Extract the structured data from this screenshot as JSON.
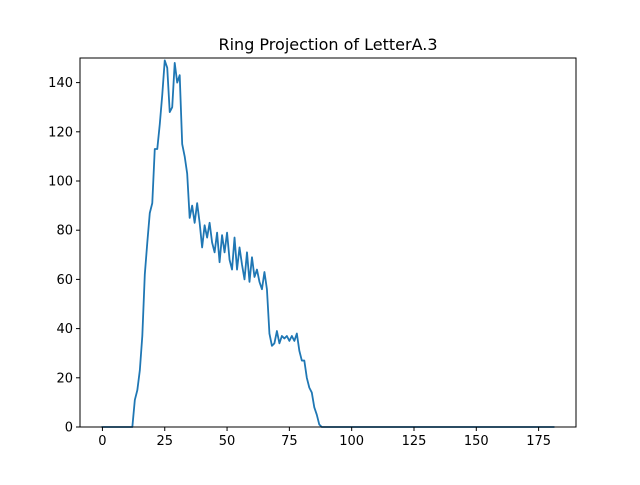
{
  "chart_data": {
    "type": "line",
    "title": "Ring Projection of LetterA.3",
    "xlabel": "",
    "ylabel": "",
    "xlim": [
      -9,
      190
    ],
    "ylim": [
      0,
      150
    ],
    "x_ticks": [
      0,
      25,
      50,
      75,
      100,
      125,
      150,
      175
    ],
    "y_ticks": [
      0,
      20,
      40,
      60,
      80,
      100,
      120,
      140
    ],
    "grid": false,
    "legend": "none",
    "colors": {
      "line": "#1f77b4",
      "axes": "#000000",
      "background": "#ffffff"
    },
    "series": [
      {
        "x": [
          0,
          1,
          2,
          3,
          4,
          5,
          6,
          7,
          8,
          9,
          10,
          11,
          12,
          13,
          14,
          15,
          16,
          17,
          18,
          19,
          20,
          21,
          22,
          23,
          24,
          25,
          26,
          27,
          28,
          29,
          30,
          31,
          32,
          33,
          34,
          35,
          36,
          37,
          38,
          39,
          40,
          41,
          42,
          43,
          44,
          45,
          46,
          47,
          48,
          49,
          50,
          51,
          52,
          53,
          54,
          55,
          56,
          57,
          58,
          59,
          60,
          61,
          62,
          63,
          64,
          65,
          66,
          67,
          68,
          69,
          70,
          71,
          72,
          73,
          74,
          75,
          76,
          77,
          78,
          79,
          80,
          81,
          82,
          83,
          84,
          85,
          86,
          87,
          88,
          89,
          90,
          91,
          92,
          93,
          94,
          95,
          96,
          97,
          98,
          99,
          100,
          101,
          102,
          103,
          104,
          105,
          106,
          107,
          108,
          109,
          110,
          111,
          112,
          113,
          114,
          115,
          116,
          117,
          118,
          119,
          120,
          121,
          122,
          123,
          124,
          125,
          126,
          127,
          128,
          129,
          130,
          131,
          132,
          133,
          134,
          135,
          136,
          137,
          138,
          139,
          140,
          141,
          142,
          143,
          144,
          145,
          146,
          147,
          148,
          149,
          150,
          151,
          152,
          153,
          154,
          155,
          156,
          157,
          158,
          159,
          160,
          161,
          162,
          163,
          164,
          165,
          166,
          167,
          168,
          169,
          170,
          171,
          172,
          173,
          174,
          175,
          176,
          177,
          178,
          179,
          180,
          181
        ],
        "y": [
          0,
          0,
          0,
          0,
          0,
          0,
          0,
          0,
          0,
          0,
          0,
          0,
          0,
          11,
          15,
          23,
          37,
          62,
          75,
          87,
          91,
          113,
          113,
          123,
          135,
          149,
          146,
          128,
          130,
          148,
          140,
          143,
          115,
          110,
          103,
          85,
          90,
          83,
          91,
          83,
          73,
          82,
          77,
          83,
          75,
          71,
          79,
          67,
          78,
          71,
          79,
          68,
          64,
          77,
          64,
          73,
          66,
          60,
          71,
          59,
          69,
          61,
          64,
          59,
          56,
          63,
          56,
          38,
          33,
          34,
          39,
          34,
          37,
          36,
          37,
          35,
          37,
          35,
          38,
          31,
          27,
          27,
          20,
          16,
          14,
          8,
          5,
          1,
          0,
          0,
          0,
          0,
          0,
          0,
          0,
          0,
          0,
          0,
          0,
          0,
          0,
          0,
          0,
          0,
          0,
          0,
          0,
          0,
          0,
          0,
          0,
          0,
          0,
          0,
          0,
          0,
          0,
          0,
          0,
          0,
          0,
          0,
          0,
          0,
          0,
          0,
          0,
          0,
          0,
          0,
          0,
          0,
          0,
          0,
          0,
          0,
          0,
          0,
          0,
          0,
          0,
          0,
          0,
          0,
          0,
          0,
          0,
          0,
          0,
          0,
          0,
          0,
          0,
          0,
          0,
          0,
          0,
          0,
          0,
          0,
          0,
          0,
          0,
          0,
          0,
          0,
          0,
          0,
          0,
          0,
          0,
          0,
          0,
          0,
          0,
          0,
          0,
          0,
          0,
          0,
          0,
          0
        ]
      }
    ]
  }
}
